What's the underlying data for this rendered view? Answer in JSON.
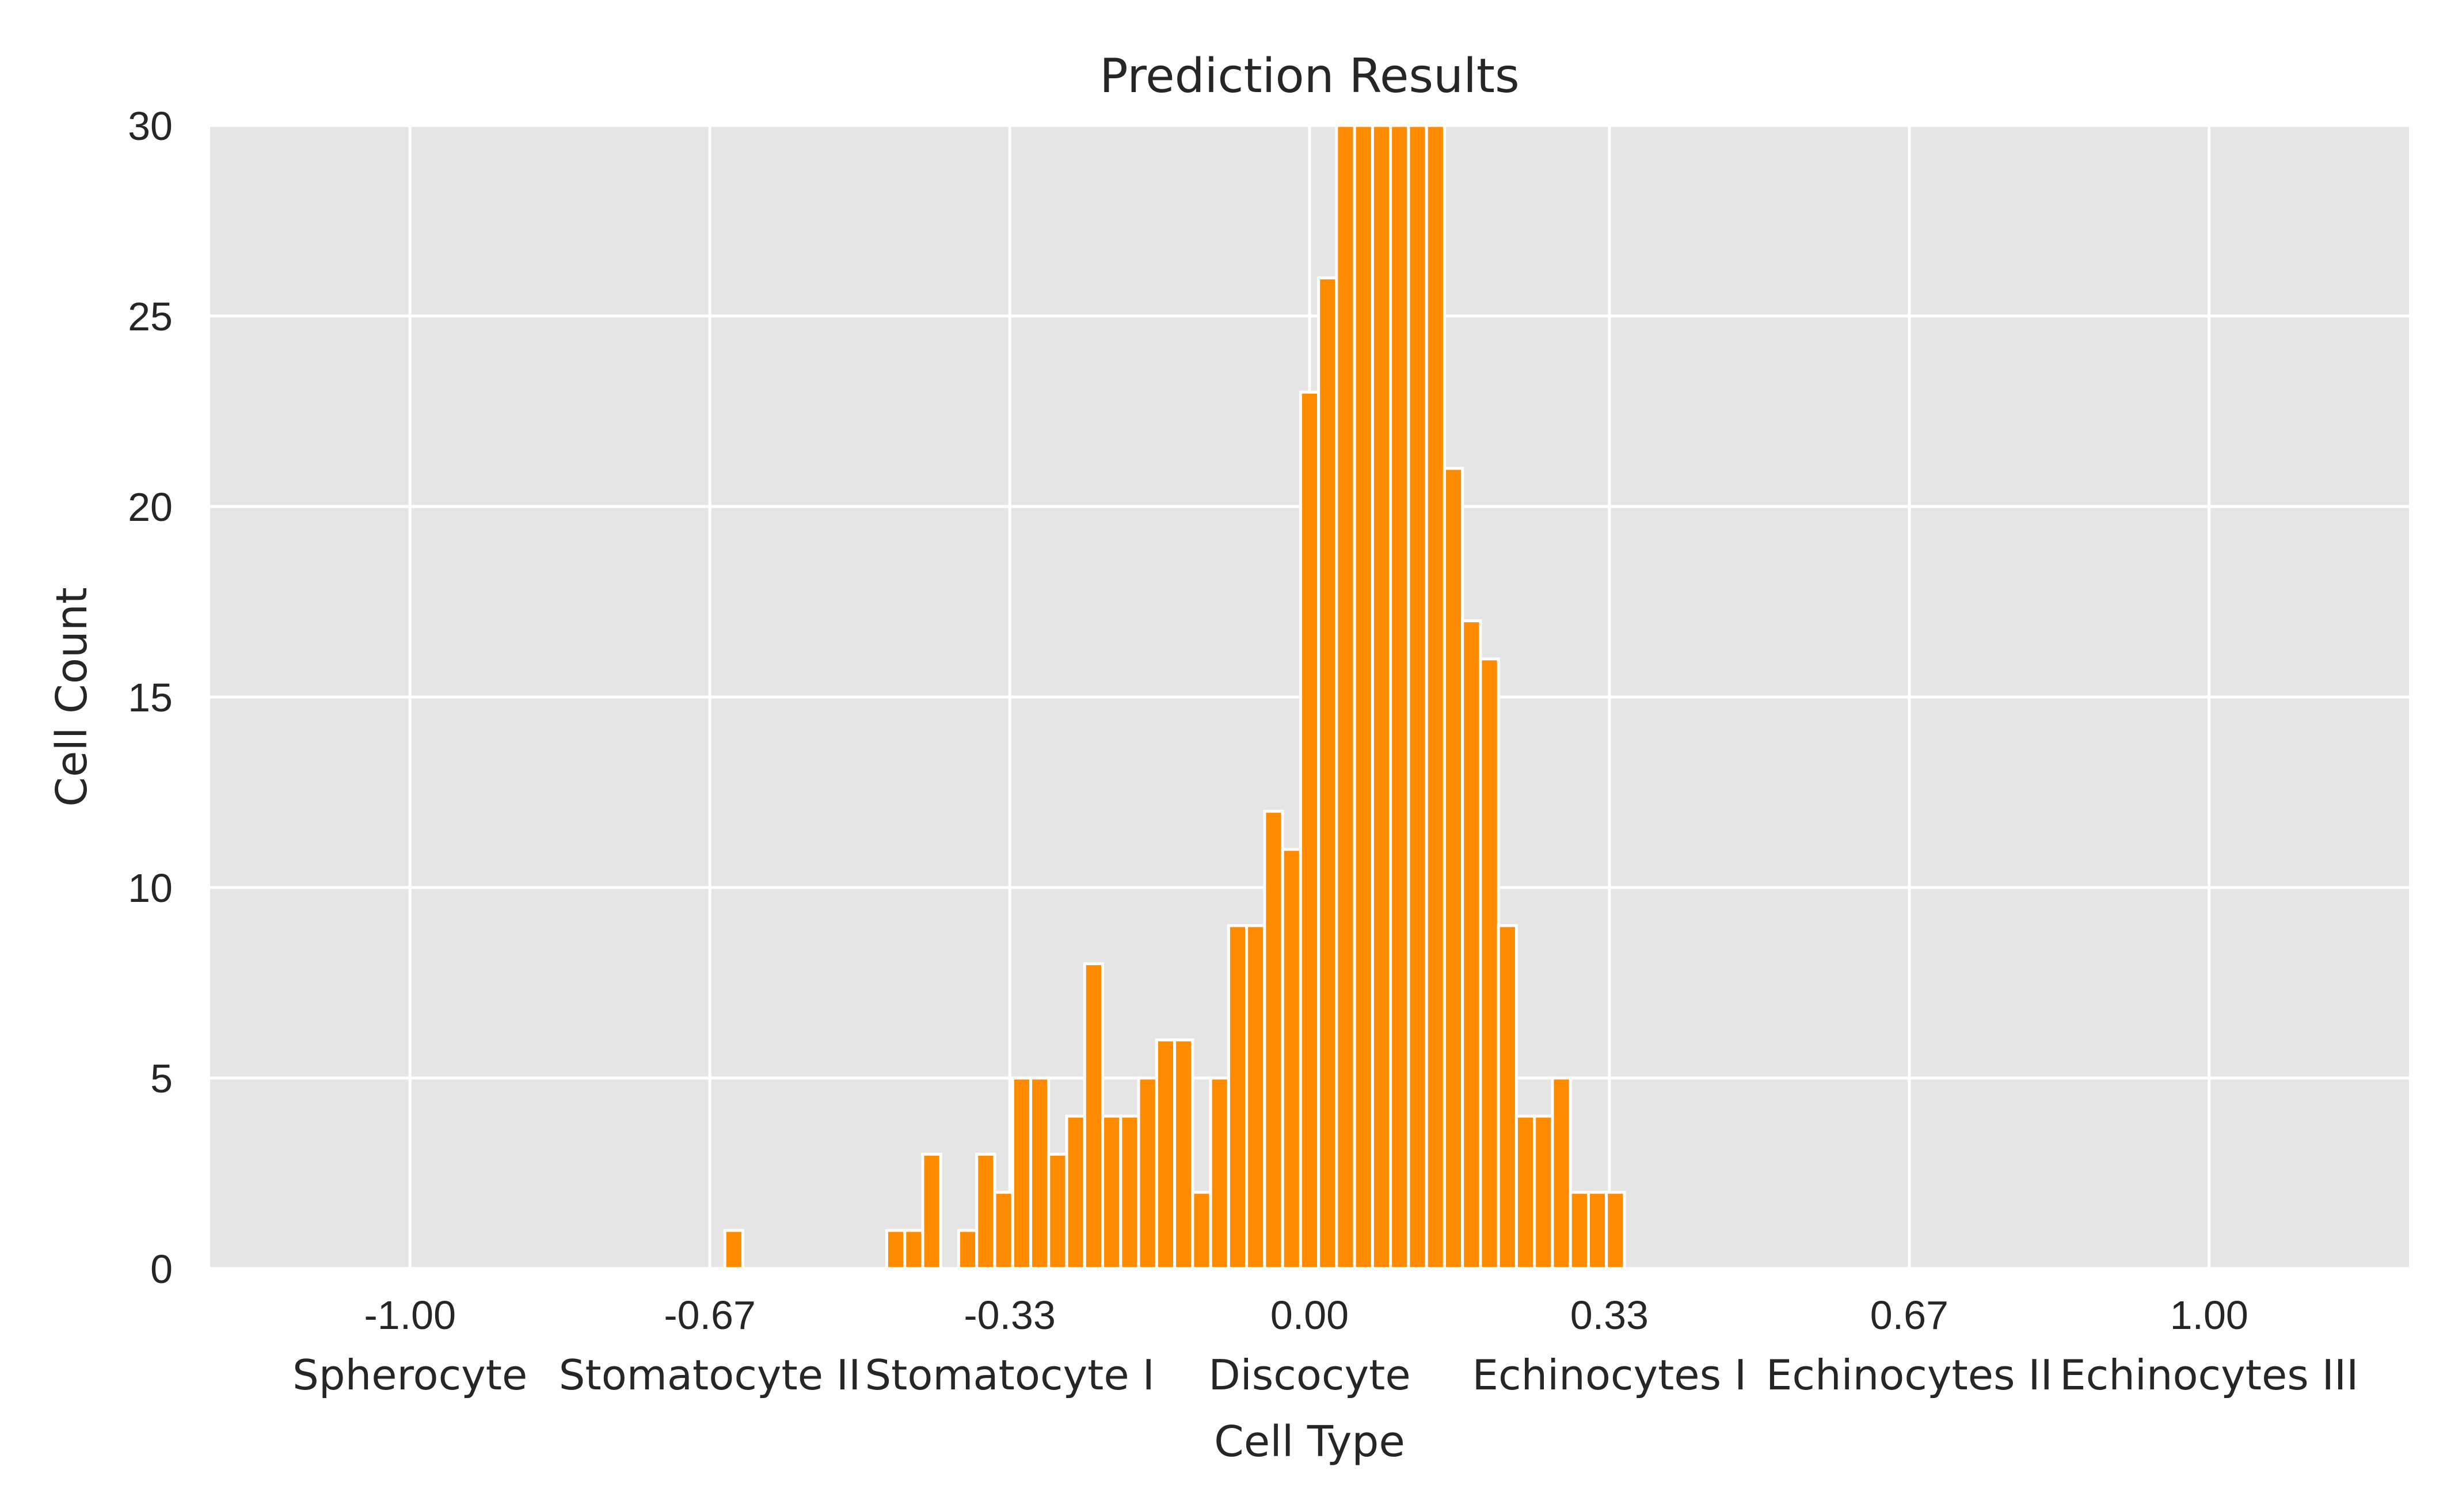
{
  "chart_data": {
    "type": "bar",
    "title": "Prediction Results",
    "xlabel": "Cell Type",
    "ylabel": "Cell Count",
    "xlim": [
      -1.2222,
      1.2222
    ],
    "ylim": [
      0,
      30
    ],
    "grid": true,
    "x_ticks": [
      {
        "value": -1.0,
        "label": "-1.00",
        "category": "Spherocyte"
      },
      {
        "value": -0.6667,
        "label": "-0.67",
        "category": "Stomatocyte II"
      },
      {
        "value": -0.3333,
        "label": "-0.33",
        "category": "Stomatocyte I"
      },
      {
        "value": 0.0,
        "label": "0.00",
        "category": "Discocyte"
      },
      {
        "value": 0.3333,
        "label": "0.33",
        "category": "Echinocytes I"
      },
      {
        "value": 0.6667,
        "label": "0.67",
        "category": "Echinocytes II"
      },
      {
        "value": 1.0,
        "label": "1.00",
        "category": "Echinocytes III"
      }
    ],
    "y_ticks": [
      0,
      5,
      10,
      15,
      20,
      25,
      30
    ],
    "bin_width": 0.02,
    "series": [
      {
        "values": [
          {
            "x": -0.64,
            "y": 1
          },
          {
            "x": -0.46,
            "y": 1
          },
          {
            "x": -0.44,
            "y": 1
          },
          {
            "x": -0.42,
            "y": 3
          },
          {
            "x": -0.38,
            "y": 1
          },
          {
            "x": -0.36,
            "y": 3
          },
          {
            "x": -0.34,
            "y": 2
          },
          {
            "x": -0.32,
            "y": 5
          },
          {
            "x": -0.3,
            "y": 5
          },
          {
            "x": -0.28,
            "y": 3
          },
          {
            "x": -0.26,
            "y": 4
          },
          {
            "x": -0.24,
            "y": 8
          },
          {
            "x": -0.22,
            "y": 4
          },
          {
            "x": -0.2,
            "y": 4
          },
          {
            "x": -0.18,
            "y": 5
          },
          {
            "x": -0.16,
            "y": 6
          },
          {
            "x": -0.14,
            "y": 6
          },
          {
            "x": -0.12,
            "y": 2
          },
          {
            "x": -0.1,
            "y": 5
          },
          {
            "x": -0.08,
            "y": 9
          },
          {
            "x": -0.06,
            "y": 9
          },
          {
            "x": -0.04,
            "y": 12
          },
          {
            "x": -0.02,
            "y": 11
          },
          {
            "x": 0.0,
            "y": 23
          },
          {
            "x": 0.02,
            "y": 26
          },
          {
            "x": 0.04,
            "y": 30
          },
          {
            "x": 0.06,
            "y": 30
          },
          {
            "x": 0.08,
            "y": 30
          },
          {
            "x": 0.1,
            "y": 30
          },
          {
            "x": 0.12,
            "y": 30
          },
          {
            "x": 0.14,
            "y": 30
          },
          {
            "x": 0.16,
            "y": 21
          },
          {
            "x": 0.18,
            "y": 17
          },
          {
            "x": 0.2,
            "y": 16
          },
          {
            "x": 0.22,
            "y": 9
          },
          {
            "x": 0.24,
            "y": 4
          },
          {
            "x": 0.26,
            "y": 4
          },
          {
            "x": 0.28,
            "y": 5
          },
          {
            "x": 0.3,
            "y": 2
          },
          {
            "x": 0.32,
            "y": 2
          },
          {
            "x": 0.34,
            "y": 2
          }
        ]
      }
    ],
    "colors": {
      "bar": "#ff8c00",
      "plot_background": "#e5e5e5",
      "grid": "#ffffff",
      "text": "#262626"
    }
  }
}
